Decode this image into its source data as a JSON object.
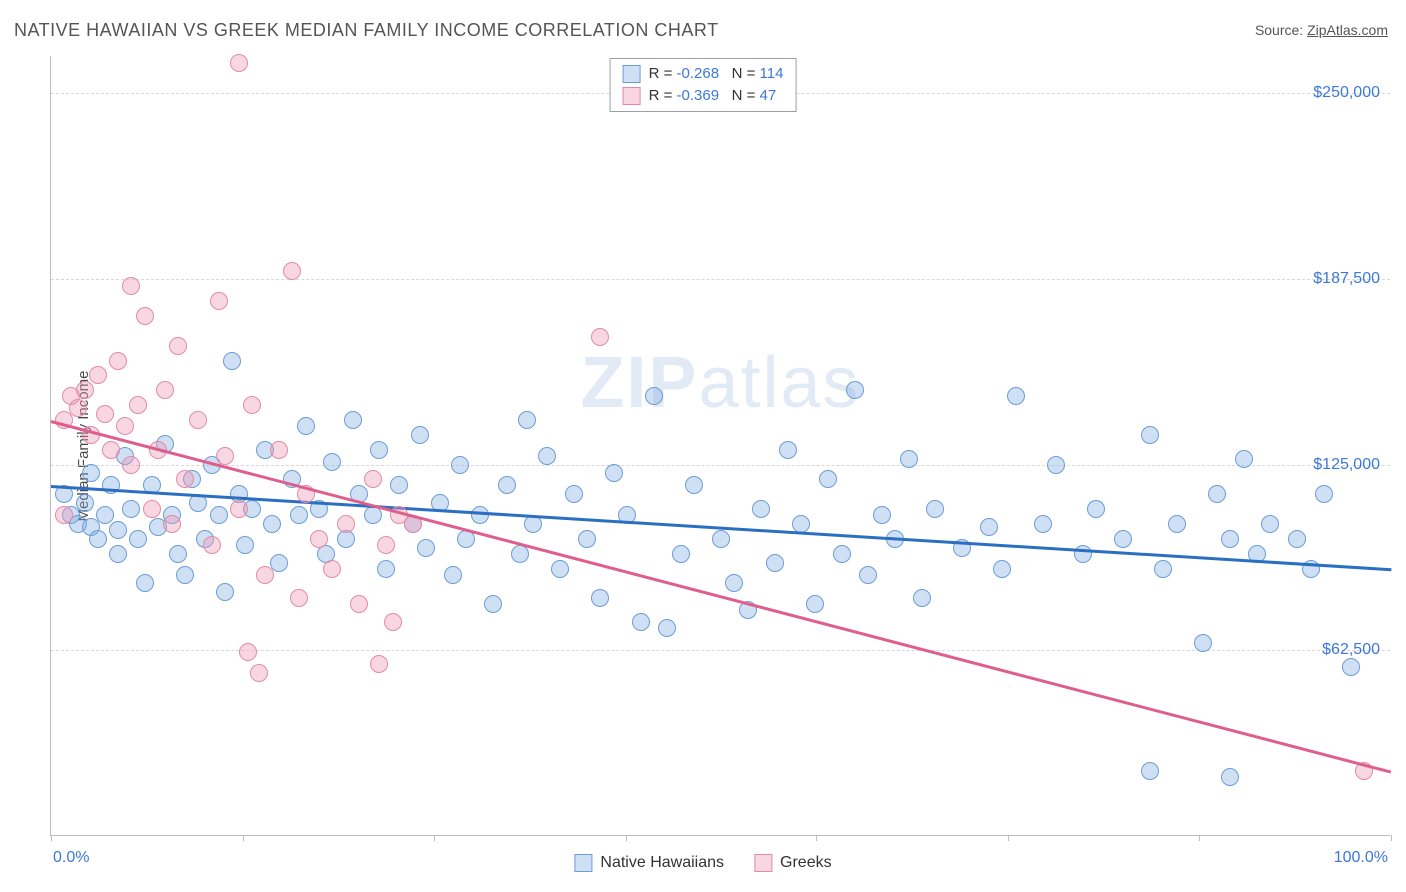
{
  "title": "NATIVE HAWAIIAN VS GREEK MEDIAN FAMILY INCOME CORRELATION CHART",
  "source_prefix": "Source: ",
  "source_name": "ZipAtlas.com",
  "y_axis_label": "Median Family Income",
  "watermark_a": "ZIP",
  "watermark_b": "atlas",
  "chart": {
    "type": "scatter",
    "background_color": "#ffffff",
    "grid_color": "#d8d8d8",
    "axis_color": "#bdbdbd",
    "tick_label_color": "#3c78d8",
    "label_fontsize": 15,
    "title_fontsize": 18,
    "title_color": "#555555",
    "xlim": [
      0,
      100
    ],
    "ylim": [
      0,
      262500
    ],
    "y_ticks": [
      {
        "v": 62500,
        "label": "$62,500"
      },
      {
        "v": 125000,
        "label": "$125,000"
      },
      {
        "v": 187500,
        "label": "$187,500"
      },
      {
        "v": 250000,
        "label": "$250,000"
      }
    ],
    "x_tick_positions": [
      0,
      14.3,
      28.6,
      42.9,
      57.1,
      71.4,
      85.7,
      100
    ],
    "x_tick_labels": [
      {
        "v": 0,
        "label": "0.0%",
        "align": "left"
      },
      {
        "v": 100,
        "label": "100.0%",
        "align": "right"
      }
    ],
    "series": [
      {
        "name": "Native Hawaiians",
        "fill": "rgba(130,170,225,0.38)",
        "stroke": "#6b9ed6",
        "trend_color": "#2b6fc2",
        "marker_radius": 9,
        "R": "-0.268",
        "N": "114",
        "trend": {
          "x1": 0,
          "y1": 118000,
          "x2": 100,
          "y2": 90000
        },
        "points": [
          [
            1,
            115000
          ],
          [
            1.5,
            108000
          ],
          [
            2,
            105000
          ],
          [
            2.5,
            112000
          ],
          [
            3,
            104000
          ],
          [
            3,
            122000
          ],
          [
            3.5,
            100000
          ],
          [
            4,
            108000
          ],
          [
            4.5,
            118000
          ],
          [
            5,
            95000
          ],
          [
            5,
            103000
          ],
          [
            5.5,
            128000
          ],
          [
            6,
            110000
          ],
          [
            6.5,
            100000
          ],
          [
            7,
            85000
          ],
          [
            7.5,
            118000
          ],
          [
            8,
            104000
          ],
          [
            8.5,
            132000
          ],
          [
            9,
            108000
          ],
          [
            9.5,
            95000
          ],
          [
            10,
            88000
          ],
          [
            10.5,
            120000
          ],
          [
            11,
            112000
          ],
          [
            11.5,
            100000
          ],
          [
            12,
            125000
          ],
          [
            12.5,
            108000
          ],
          [
            13,
            82000
          ],
          [
            13.5,
            160000
          ],
          [
            14,
            115000
          ],
          [
            14.5,
            98000
          ],
          [
            15,
            110000
          ],
          [
            16,
            130000
          ],
          [
            16.5,
            105000
          ],
          [
            17,
            92000
          ],
          [
            18,
            120000
          ],
          [
            18.5,
            108000
          ],
          [
            19,
            138000
          ],
          [
            20,
            110000
          ],
          [
            20.5,
            95000
          ],
          [
            21,
            126000
          ],
          [
            22,
            100000
          ],
          [
            22.5,
            140000
          ],
          [
            23,
            115000
          ],
          [
            24,
            108000
          ],
          [
            24.5,
            130000
          ],
          [
            25,
            90000
          ],
          [
            26,
            118000
          ],
          [
            27,
            105000
          ],
          [
            27.5,
            135000
          ],
          [
            28,
            97000
          ],
          [
            29,
            112000
          ],
          [
            30,
            88000
          ],
          [
            30.5,
            125000
          ],
          [
            31,
            100000
          ],
          [
            32,
            108000
          ],
          [
            33,
            78000
          ],
          [
            34,
            118000
          ],
          [
            35,
            95000
          ],
          [
            35.5,
            140000
          ],
          [
            36,
            105000
          ],
          [
            37,
            128000
          ],
          [
            38,
            90000
          ],
          [
            39,
            115000
          ],
          [
            40,
            100000
          ],
          [
            41,
            80000
          ],
          [
            42,
            122000
          ],
          [
            43,
            108000
          ],
          [
            44,
            72000
          ],
          [
            45,
            148000
          ],
          [
            46,
            70000
          ],
          [
            47,
            95000
          ],
          [
            48,
            118000
          ],
          [
            50,
            100000
          ],
          [
            51,
            85000
          ],
          [
            52,
            76000
          ],
          [
            53,
            110000
          ],
          [
            54,
            92000
          ],
          [
            55,
            130000
          ],
          [
            56,
            105000
          ],
          [
            57,
            78000
          ],
          [
            58,
            120000
          ],
          [
            59,
            95000
          ],
          [
            60,
            150000
          ],
          [
            61,
            88000
          ],
          [
            62,
            108000
          ],
          [
            63,
            100000
          ],
          [
            64,
            127000
          ],
          [
            65,
            80000
          ],
          [
            66,
            110000
          ],
          [
            68,
            97000
          ],
          [
            70,
            104000
          ],
          [
            71,
            90000
          ],
          [
            72,
            148000
          ],
          [
            74,
            105000
          ],
          [
            75,
            125000
          ],
          [
            77,
            95000
          ],
          [
            78,
            110000
          ],
          [
            80,
            100000
          ],
          [
            82,
            135000
          ],
          [
            83,
            90000
          ],
          [
            84,
            105000
          ],
          [
            86,
            65000
          ],
          [
            87,
            115000
          ],
          [
            88,
            100000
          ],
          [
            89,
            127000
          ],
          [
            90,
            95000
          ],
          [
            91,
            105000
          ],
          [
            93,
            100000
          ],
          [
            94,
            90000
          ],
          [
            95,
            115000
          ],
          [
            88,
            20000
          ],
          [
            82,
            22000
          ],
          [
            97,
            57000
          ]
        ]
      },
      {
        "name": "Greeks",
        "fill": "rgba(240,150,180,0.38)",
        "stroke": "#e38aa8",
        "trend_color": "#de5f8d",
        "marker_radius": 9,
        "R": "-0.369",
        "N": "47",
        "trend": {
          "x1": 0,
          "y1": 140000,
          "x2": 100,
          "y2": 22000
        },
        "points": [
          [
            1,
            140000
          ],
          [
            1.5,
            148000
          ],
          [
            2,
            144000
          ],
          [
            2.5,
            150000
          ],
          [
            3,
            135000
          ],
          [
            3.5,
            155000
          ],
          [
            4,
            142000
          ],
          [
            4.5,
            130000
          ],
          [
            5,
            160000
          ],
          [
            5.5,
            138000
          ],
          [
            6,
            125000
          ],
          [
            6.5,
            145000
          ],
          [
            7,
            175000
          ],
          [
            7.5,
            110000
          ],
          [
            8,
            130000
          ],
          [
            8.5,
            150000
          ],
          [
            9,
            105000
          ],
          [
            9.5,
            165000
          ],
          [
            10,
            120000
          ],
          [
            11,
            140000
          ],
          [
            12,
            98000
          ],
          [
            12.5,
            180000
          ],
          [
            13,
            128000
          ],
          [
            14,
            110000
          ],
          [
            14,
            260000
          ],
          [
            15,
            145000
          ],
          [
            16,
            88000
          ],
          [
            17,
            130000
          ],
          [
            18,
            190000
          ],
          [
            18.5,
            80000
          ],
          [
            19,
            115000
          ],
          [
            20,
            100000
          ],
          [
            21,
            90000
          ],
          [
            22,
            105000
          ],
          [
            23,
            78000
          ],
          [
            24,
            120000
          ],
          [
            25,
            98000
          ],
          [
            26,
            108000
          ],
          [
            27,
            105000
          ],
          [
            25.5,
            72000
          ],
          [
            15.5,
            55000
          ],
          [
            14.7,
            62000
          ],
          [
            24.5,
            58000
          ],
          [
            41,
            168000
          ],
          [
            98,
            22000
          ],
          [
            6,
            185000
          ],
          [
            1,
            108000
          ]
        ]
      }
    ],
    "legend": {
      "swatch_blue_fill": "rgba(130,170,225,0.55)",
      "swatch_blue_border": "#6b9ed6",
      "swatch_pink_fill": "rgba(240,150,180,0.55)",
      "swatch_pink_border": "#e38aa8"
    }
  }
}
